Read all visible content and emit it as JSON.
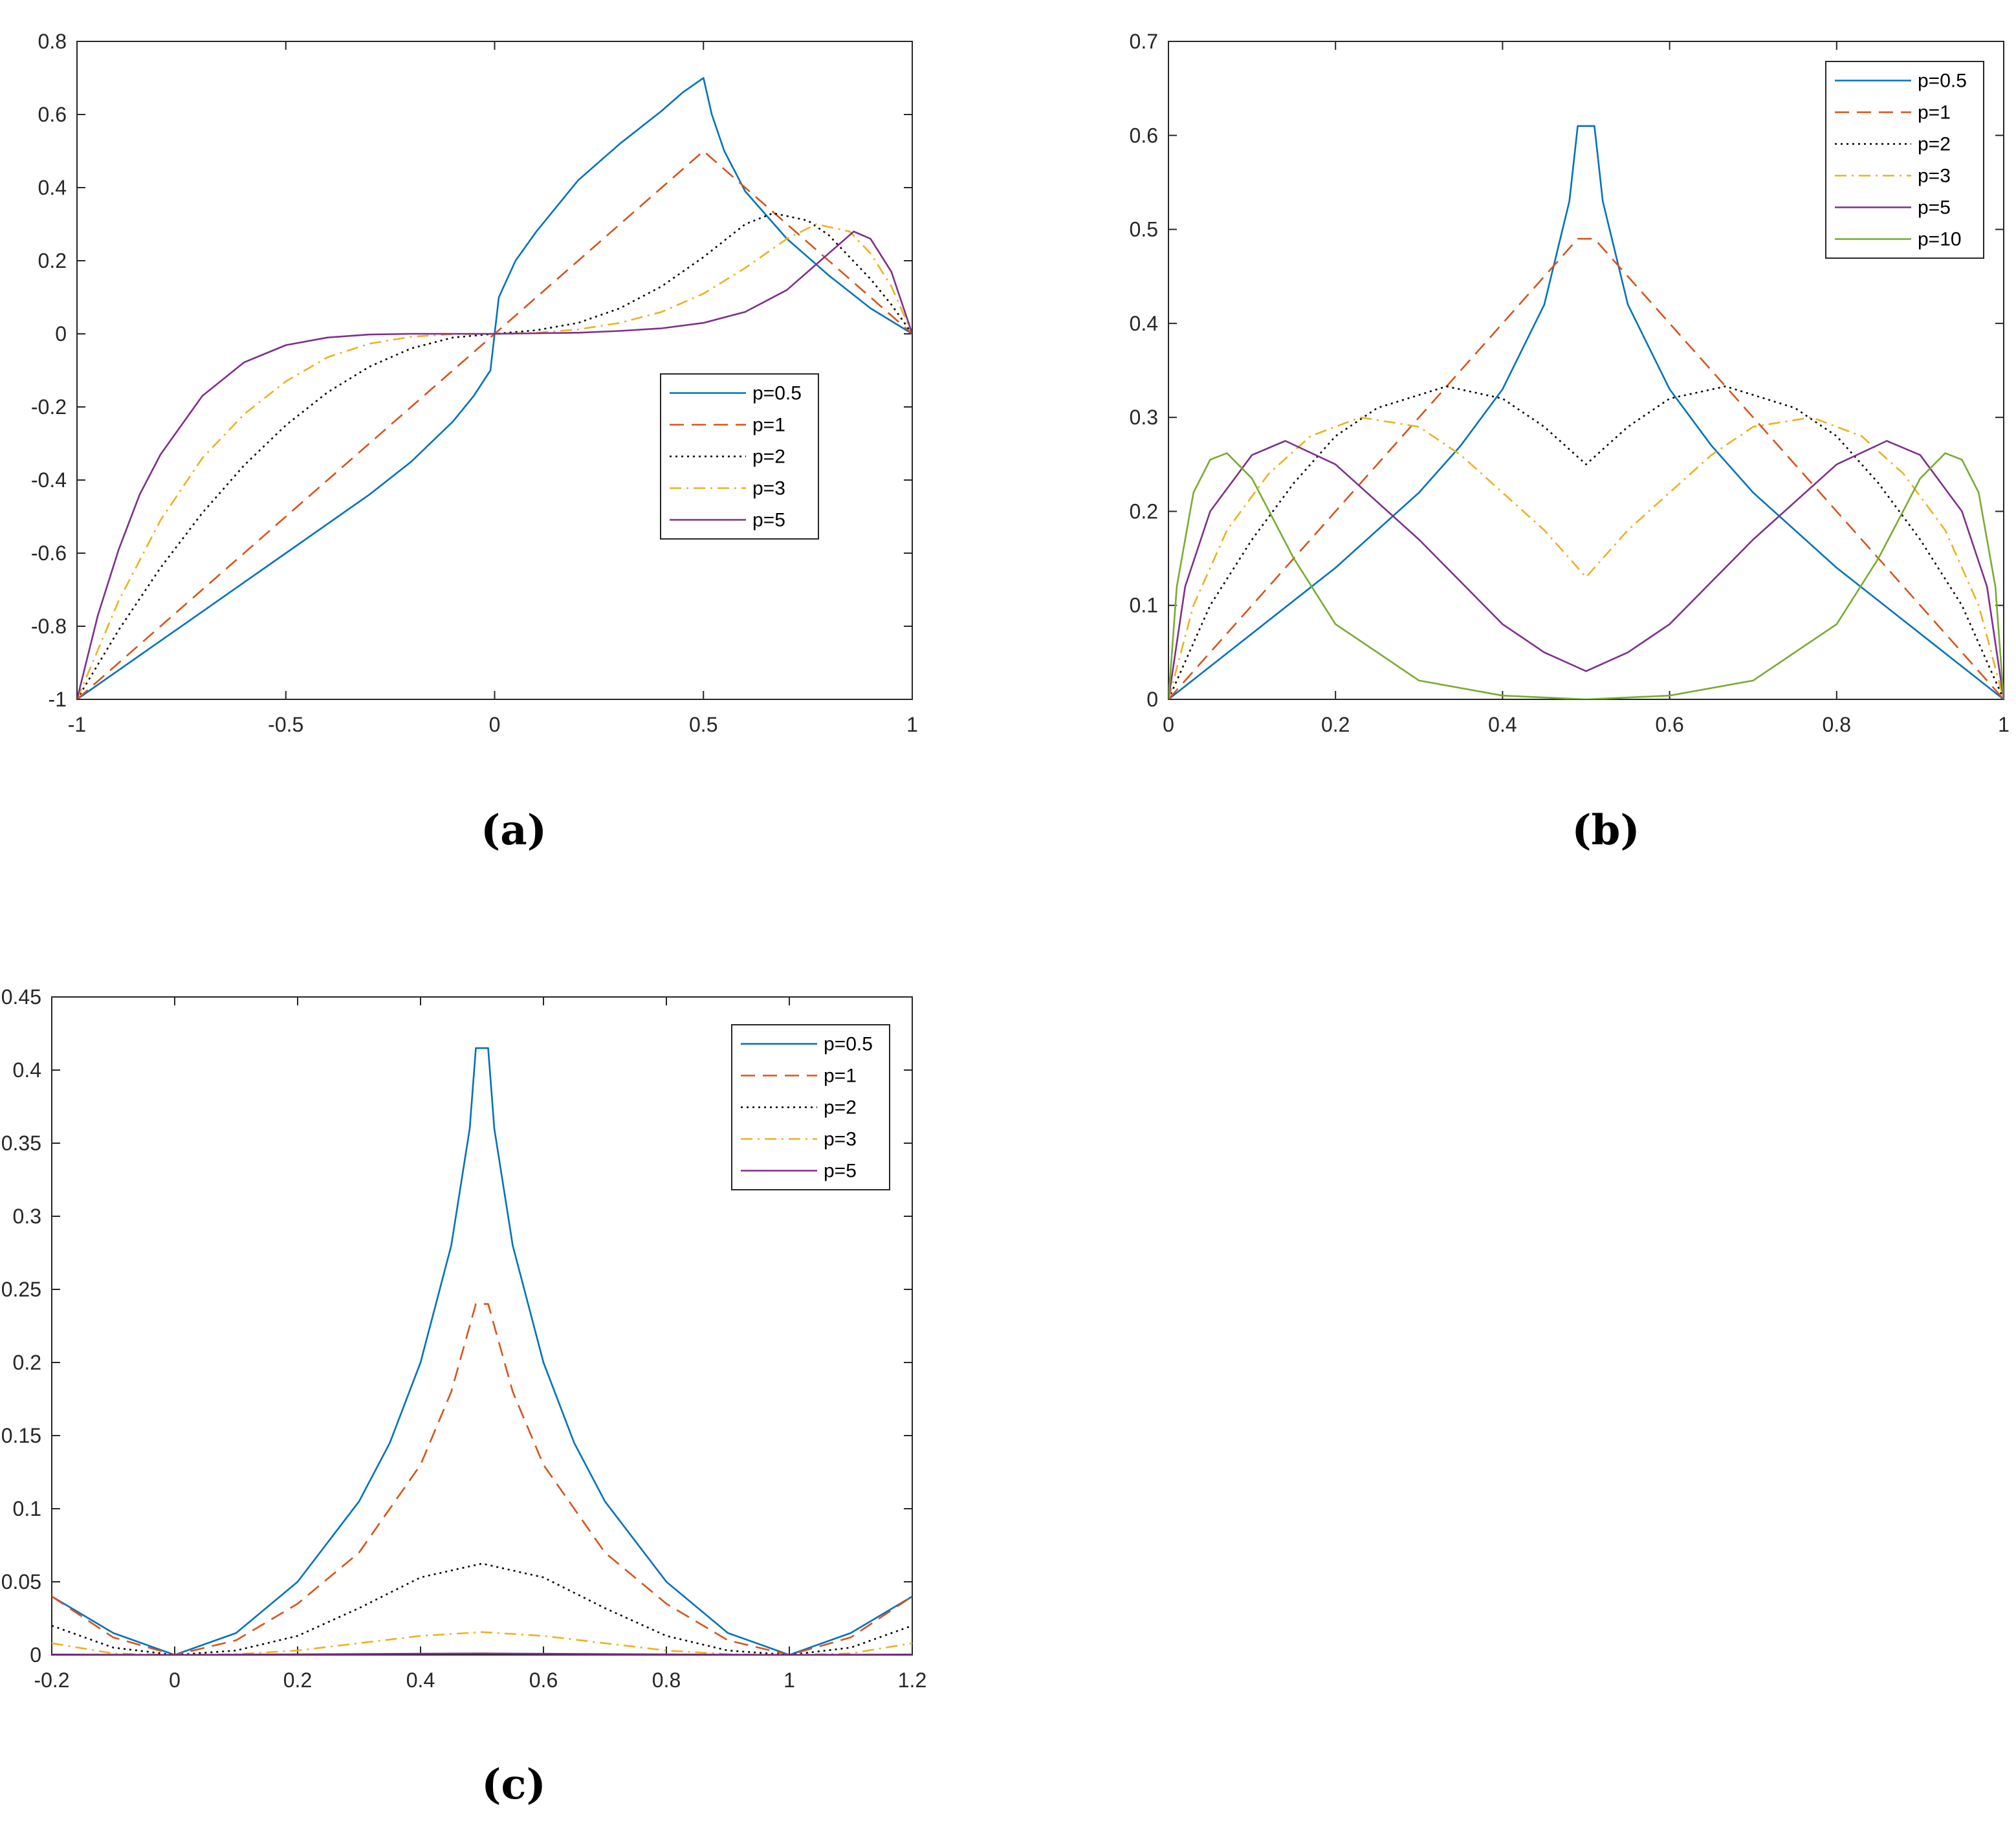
{
  "chart_data": [
    {
      "type": "line",
      "caption": "(a)",
      "xlim": [
        -1,
        1
      ],
      "ylim": [
        -1,
        0.8
      ],
      "xticks": [
        -1,
        -0.5,
        0,
        0.5,
        1
      ],
      "xtick_labels": [
        "-1",
        "-0.5",
        "0",
        "0.5",
        "1"
      ],
      "yticks": [
        -1,
        -0.8,
        -0.6,
        -0.4,
        -0.2,
        0,
        0.2,
        0.4,
        0.6,
        0.8
      ],
      "ytick_labels": [
        "-1",
        "-0.8",
        "-0.6",
        "-0.4",
        "-0.2",
        "0",
        "0.2",
        "0.4",
        "0.6",
        "0.8"
      ],
      "grid": false,
      "legend_position": "center-right",
      "series": [
        {
          "name": "p=0.5",
          "color": "#0072BD",
          "dash": "solid",
          "x": [
            -1,
            -0.9,
            -0.8,
            -0.7,
            -0.6,
            -0.5,
            -0.4,
            -0.3,
            -0.2,
            -0.1,
            -0.05,
            -0.01,
            0,
            0.01,
            0.05,
            0.1,
            0.2,
            0.3,
            0.4,
            0.45,
            0.5,
            0.52,
            0.55,
            0.6,
            0.7,
            0.8,
            0.9,
            1
          ],
          "y": [
            -1,
            -0.92,
            -0.84,
            -0.76,
            -0.68,
            -0.6,
            -0.52,
            -0.44,
            -0.35,
            -0.24,
            -0.17,
            -0.1,
            0,
            0.1,
            0.2,
            0.28,
            0.42,
            0.52,
            0.61,
            0.66,
            0.7,
            0.6,
            0.5,
            0.39,
            0.26,
            0.16,
            0.07,
            0
          ]
        },
        {
          "name": "p=1",
          "color": "#D95319",
          "dash": "dashed",
          "x": [
            -1,
            0.5,
            1
          ],
          "y": [
            -1,
            0.5,
            0
          ]
        },
        {
          "name": "p=2",
          "color": "#000000",
          "dash": "dotted",
          "x": [
            -1,
            -0.9,
            -0.8,
            -0.7,
            -0.6,
            -0.5,
            -0.4,
            -0.3,
            -0.2,
            -0.1,
            0,
            0.1,
            0.2,
            0.3,
            0.4,
            0.5,
            0.6,
            0.667,
            0.75,
            0.8,
            0.9,
            0.95,
            1
          ],
          "y": [
            -1,
            -0.81,
            -0.64,
            -0.49,
            -0.36,
            -0.25,
            -0.16,
            -0.09,
            -0.04,
            -0.01,
            0,
            0.01,
            0.03,
            0.07,
            0.13,
            0.21,
            0.3,
            0.33,
            0.31,
            0.27,
            0.15,
            0.08,
            0
          ]
        },
        {
          "name": "p=3",
          "color": "#EDB120",
          "dash": "dashdot",
          "x": [
            -1,
            -0.9,
            -0.8,
            -0.7,
            -0.6,
            -0.5,
            -0.4,
            -0.3,
            -0.2,
            -0.1,
            0,
            0.1,
            0.2,
            0.3,
            0.4,
            0.5,
            0.6,
            0.7,
            0.77,
            0.85,
            0.9,
            0.95,
            1
          ],
          "y": [
            -1,
            -0.73,
            -0.51,
            -0.34,
            -0.22,
            -0.13,
            -0.064,
            -0.027,
            -0.008,
            -0.001,
            0,
            0.003,
            0.012,
            0.03,
            0.06,
            0.11,
            0.18,
            0.26,
            0.3,
            0.28,
            0.22,
            0.13,
            0
          ]
        },
        {
          "name": "p=5",
          "color": "#7E2F8E",
          "dash": "solid",
          "x": [
            -1,
            -0.95,
            -0.9,
            -0.85,
            -0.8,
            -0.7,
            -0.6,
            -0.5,
            -0.4,
            -0.3,
            -0.2,
            0,
            0.2,
            0.3,
            0.4,
            0.5,
            0.6,
            0.7,
            0.8,
            0.86,
            0.9,
            0.95,
            1
          ],
          "y": [
            -1,
            -0.77,
            -0.59,
            -0.44,
            -0.33,
            -0.17,
            -0.078,
            -0.031,
            -0.01,
            -0.002,
            0,
            0,
            0.003,
            0.008,
            0.015,
            0.03,
            0.06,
            0.12,
            0.22,
            0.28,
            0.26,
            0.17,
            0
          ]
        }
      ]
    },
    {
      "type": "line",
      "caption": "(b)",
      "xlim": [
        0,
        1
      ],
      "ylim": [
        0,
        0.7
      ],
      "xticks": [
        0,
        0.2,
        0.4,
        0.6,
        0.8,
        1
      ],
      "xtick_labels": [
        "0",
        "0.2",
        "0.4",
        "0.6",
        "0.8",
        "1"
      ],
      "yticks": [
        0,
        0.1,
        0.2,
        0.3,
        0.4,
        0.5,
        0.6,
        0.7
      ],
      "ytick_labels": [
        "0",
        "0.1",
        "0.2",
        "0.3",
        "0.4",
        "0.5",
        "0.6",
        "0.7"
      ],
      "grid": false,
      "legend_position": "top-right",
      "series": [
        {
          "name": "p=0.5",
          "color": "#0072BD",
          "dash": "solid",
          "x": [
            0,
            0.1,
            0.2,
            0.3,
            0.35,
            0.4,
            0.45,
            0.48,
            0.49,
            0.51,
            0.52,
            0.55,
            0.6,
            0.65,
            0.7,
            0.8,
            0.9,
            1
          ],
          "y": [
            0,
            0.07,
            0.14,
            0.22,
            0.27,
            0.33,
            0.42,
            0.53,
            0.61,
            0.61,
            0.53,
            0.42,
            0.33,
            0.27,
            0.22,
            0.14,
            0.07,
            0
          ]
        },
        {
          "name": "p=1",
          "color": "#D95319",
          "dash": "dashed",
          "x": [
            0,
            0.49,
            0.51,
            1
          ],
          "y": [
            0,
            0.49,
            0.49,
            0
          ]
        },
        {
          "name": "p=2",
          "color": "#000000",
          "dash": "dotted",
          "x": [
            0,
            0.05,
            0.1,
            0.15,
            0.2,
            0.25,
            0.333,
            0.4,
            0.45,
            0.5,
            0.55,
            0.6,
            0.667,
            0.75,
            0.8,
            0.85,
            0.9,
            0.95,
            1
          ],
          "y": [
            0,
            0.1,
            0.17,
            0.23,
            0.28,
            0.31,
            0.333,
            0.32,
            0.29,
            0.25,
            0.29,
            0.32,
            0.333,
            0.31,
            0.28,
            0.23,
            0.17,
            0.1,
            0
          ]
        },
        {
          "name": "p=3",
          "color": "#EDB120",
          "dash": "dashdot",
          "x": [
            0,
            0.03,
            0.07,
            0.12,
            0.17,
            0.23,
            0.3,
            0.35,
            0.4,
            0.45,
            0.5,
            0.55,
            0.6,
            0.65,
            0.7,
            0.77,
            0.83,
            0.88,
            0.93,
            0.97,
            1
          ],
          "y": [
            0,
            0.1,
            0.18,
            0.24,
            0.28,
            0.3,
            0.29,
            0.26,
            0.22,
            0.18,
            0.13,
            0.18,
            0.22,
            0.26,
            0.29,
            0.3,
            0.28,
            0.24,
            0.18,
            0.1,
            0
          ]
        },
        {
          "name": "p=5",
          "color": "#7E2F8E",
          "dash": "solid",
          "x": [
            0,
            0.02,
            0.05,
            0.1,
            0.14,
            0.2,
            0.3,
            0.4,
            0.45,
            0.5,
            0.55,
            0.6,
            0.7,
            0.8,
            0.86,
            0.9,
            0.95,
            0.98,
            1
          ],
          "y": [
            0,
            0.12,
            0.2,
            0.26,
            0.275,
            0.25,
            0.17,
            0.08,
            0.05,
            0.03,
            0.05,
            0.08,
            0.17,
            0.25,
            0.275,
            0.26,
            0.2,
            0.12,
            0
          ],
          "note_color_legend": "#7E2F8E"
        },
        {
          "name": "p=10",
          "color": "#77AC30",
          "dash": "solid",
          "x": [
            0,
            0.01,
            0.03,
            0.05,
            0.07,
            0.1,
            0.15,
            0.2,
            0.3,
            0.4,
            0.5,
            0.6,
            0.7,
            0.8,
            0.85,
            0.9,
            0.93,
            0.95,
            0.97,
            0.99,
            1
          ],
          "y": [
            0,
            0.12,
            0.22,
            0.255,
            0.262,
            0.235,
            0.15,
            0.08,
            0.02,
            0.004,
            0,
            0.004,
            0.02,
            0.08,
            0.15,
            0.235,
            0.262,
            0.255,
            0.22,
            0.12,
            0
          ]
        }
      ]
    },
    {
      "type": "line",
      "caption": "(c)",
      "xlim": [
        -0.2,
        1.2
      ],
      "ylim": [
        0,
        0.45
      ],
      "xticks": [
        -0.2,
        0,
        0.2,
        0.4,
        0.6,
        0.8,
        1,
        1.2
      ],
      "xtick_labels": [
        "-0.2",
        "0",
        "0.2",
        "0.4",
        "0.6",
        "0.8",
        "1",
        "1.2"
      ],
      "yticks": [
        0,
        0.05,
        0.1,
        0.15,
        0.2,
        0.25,
        0.3,
        0.35,
        0.4,
        0.45
      ],
      "ytick_labels": [
        "0",
        "0.05",
        "0.1",
        "0.15",
        "0.2",
        "0.25",
        "0.3",
        "0.35",
        "0.4",
        "0.45"
      ],
      "grid": false,
      "legend_position": "top-right",
      "series": [
        {
          "name": "p=0.5",
          "color": "#0072BD",
          "dash": "solid",
          "x": [
            -0.2,
            -0.1,
            0,
            0.1,
            0.2,
            0.3,
            0.35,
            0.4,
            0.45,
            0.48,
            0.49,
            0.51,
            0.52,
            0.55,
            0.6,
            0.65,
            0.7,
            0.8,
            0.9,
            1,
            1.1,
            1.2
          ],
          "y": [
            0.04,
            0.015,
            0,
            0.015,
            0.05,
            0.105,
            0.145,
            0.2,
            0.28,
            0.36,
            0.415,
            0.415,
            0.36,
            0.28,
            0.2,
            0.145,
            0.105,
            0.05,
            0.015,
            0,
            0.015,
            0.04
          ]
        },
        {
          "name": "p=1",
          "color": "#D95319",
          "dash": "dashed",
          "x": [
            -0.2,
            -0.1,
            0,
            0.1,
            0.2,
            0.3,
            0.4,
            0.45,
            0.49,
            0.51,
            0.55,
            0.6,
            0.7,
            0.8,
            0.9,
            1,
            1.1,
            1.2
          ],
          "y": [
            0.04,
            0.012,
            0,
            0.01,
            0.035,
            0.07,
            0.13,
            0.18,
            0.24,
            0.24,
            0.18,
            0.13,
            0.07,
            0.035,
            0.01,
            0,
            0.012,
            0.04
          ]
        },
        {
          "name": "p=2",
          "color": "#000000",
          "dash": "dotted",
          "x": [
            -0.2,
            -0.1,
            0,
            0.1,
            0.2,
            0.3,
            0.4,
            0.5,
            0.6,
            0.7,
            0.8,
            0.9,
            1,
            1.1,
            1.2
          ],
          "y": [
            0.02,
            0.005,
            0,
            0.003,
            0.013,
            0.032,
            0.053,
            0.0625,
            0.053,
            0.032,
            0.013,
            0.003,
            0,
            0.005,
            0.02
          ]
        },
        {
          "name": "p=3",
          "color": "#EDB120",
          "dash": "dashdot",
          "x": [
            -0.2,
            -0.1,
            0,
            0.1,
            0.2,
            0.3,
            0.4,
            0.5,
            0.6,
            0.7,
            0.8,
            0.9,
            1,
            1.1,
            1.2
          ],
          "y": [
            0.008,
            0.001,
            0,
            0.0005,
            0.003,
            0.008,
            0.013,
            0.0156,
            0.013,
            0.008,
            0.003,
            0.0005,
            0,
            0.001,
            0.008
          ]
        },
        {
          "name": "p=5",
          "color": "#7E2F8E",
          "dash": "solid",
          "x": [
            -0.2,
            0,
            0.5,
            1,
            1.2
          ],
          "y": [
            0.0003,
            0,
            0.001,
            0,
            0.0003
          ]
        }
      ]
    }
  ]
}
